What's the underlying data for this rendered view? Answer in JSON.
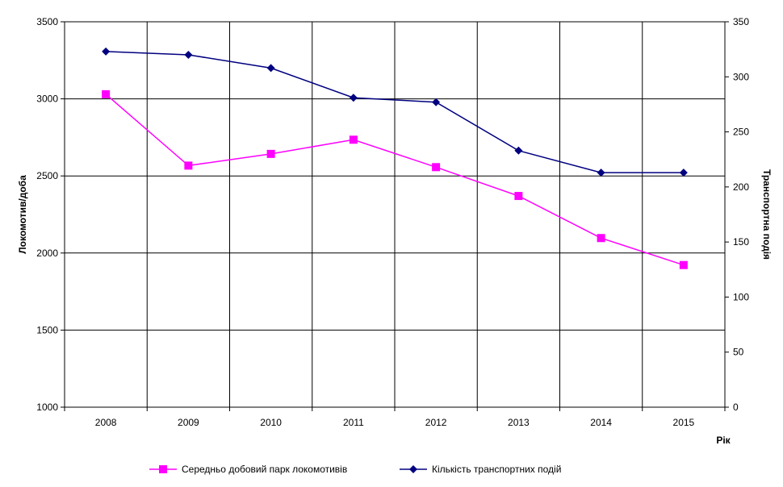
{
  "chart_data": {
    "type": "line",
    "title": "",
    "xlabel": "Рік",
    "ylabel_left": "Локомотив/доба",
    "ylabel_right": "Транспортна подія",
    "x": [
      "2008",
      "2009",
      "2010",
      "2011",
      "2012",
      "2013",
      "2014",
      "2015"
    ],
    "ylim_left": [
      1000,
      3500
    ],
    "yticks_left": [
      "1000",
      "1500",
      "2000",
      "2500",
      "3000",
      "3500"
    ],
    "ylim_right": [
      0,
      350
    ],
    "yticks_right": [
      "0",
      "50",
      "100",
      "150",
      "200",
      "250",
      "300",
      "350"
    ],
    "grid": true,
    "legend_position": "bottom",
    "series": [
      {
        "name": "Середньо добовий парк локомотивів",
        "axis": "left",
        "color": "#ff00ff",
        "marker": "square",
        "values": [
          3030,
          2567,
          2643,
          2735,
          2557,
          2370,
          2097,
          1922
        ]
      },
      {
        "name": "Кількість транспортних подій",
        "axis": "right",
        "color": "#000080",
        "marker": "diamond",
        "values": [
          323,
          320,
          308,
          281,
          277,
          233,
          213,
          213
        ]
      }
    ]
  }
}
